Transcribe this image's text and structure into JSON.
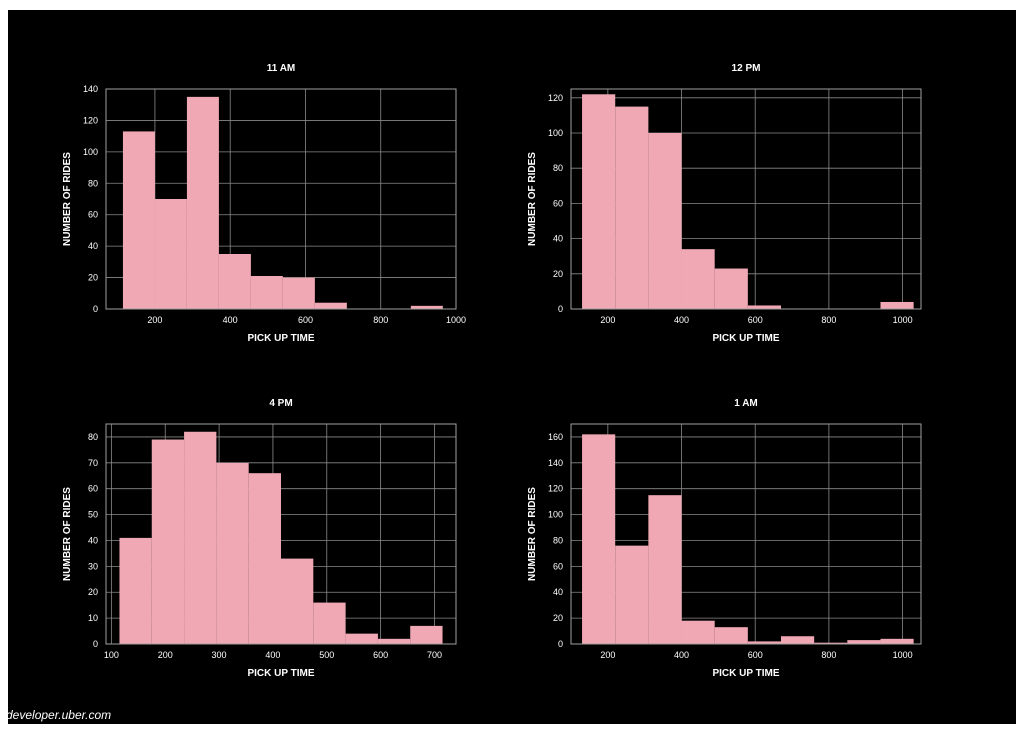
{
  "colors": {
    "background": "#000000",
    "bar": "#f0a8b4",
    "grid": "#8a8a8a",
    "text": "#ffffff"
  },
  "watermark": "developer.uber.com",
  "chart_data": [
    {
      "type": "bar",
      "title": "11 AM",
      "xlabel": "PICK UP TIME",
      "ylabel": "NUMBER OF RIDES",
      "xlim": [
        70,
        1000
      ],
      "ylim": [
        0,
        140
      ],
      "xticks": [
        200,
        400,
        600,
        800,
        1000
      ],
      "yticks": [
        0,
        20,
        40,
        60,
        80,
        100,
        120,
        140
      ],
      "grid": true,
      "bins": [
        {
          "x0": 115,
          "x1": 200,
          "count": 113
        },
        {
          "x0": 200,
          "x1": 285,
          "count": 70
        },
        {
          "x0": 285,
          "x1": 370,
          "count": 135
        },
        {
          "x0": 370,
          "x1": 455,
          "count": 35
        },
        {
          "x0": 455,
          "x1": 540,
          "count": 21
        },
        {
          "x0": 540,
          "x1": 625,
          "count": 20
        },
        {
          "x0": 625,
          "x1": 710,
          "count": 4
        },
        {
          "x0": 710,
          "x1": 795,
          "count": 0
        },
        {
          "x0": 795,
          "x1": 880,
          "count": 0
        },
        {
          "x0": 880,
          "x1": 965,
          "count": 2
        }
      ]
    },
    {
      "type": "bar",
      "title": "12 PM",
      "xlabel": "PICK UP TIME",
      "ylabel": "NUMBER OF RIDES",
      "xlim": [
        100,
        1050
      ],
      "ylim": [
        0,
        125
      ],
      "xticks": [
        200,
        400,
        600,
        800,
        1000
      ],
      "yticks": [
        0,
        20,
        40,
        60,
        80,
        100,
        120
      ],
      "grid": true,
      "bins": [
        {
          "x0": 130,
          "x1": 220,
          "count": 122
        },
        {
          "x0": 220,
          "x1": 310,
          "count": 115
        },
        {
          "x0": 310,
          "x1": 400,
          "count": 100
        },
        {
          "x0": 400,
          "x1": 490,
          "count": 34
        },
        {
          "x0": 490,
          "x1": 580,
          "count": 23
        },
        {
          "x0": 580,
          "x1": 670,
          "count": 2
        },
        {
          "x0": 670,
          "x1": 760,
          "count": 0
        },
        {
          "x0": 760,
          "x1": 850,
          "count": 0
        },
        {
          "x0": 850,
          "x1": 940,
          "count": 0
        },
        {
          "x0": 940,
          "x1": 1030,
          "count": 4
        }
      ]
    },
    {
      "type": "bar",
      "title": "4 PM",
      "xlabel": "PICK UP TIME",
      "ylabel": "NUMBER OF RIDES",
      "xlim": [
        90,
        740
      ],
      "ylim": [
        0,
        85
      ],
      "xticks": [
        100,
        200,
        300,
        400,
        500,
        600,
        700
      ],
      "yticks": [
        0,
        10,
        20,
        30,
        40,
        50,
        60,
        70,
        80
      ],
      "grid": true,
      "bins": [
        {
          "x0": 115,
          "x1": 175,
          "count": 41
        },
        {
          "x0": 175,
          "x1": 235,
          "count": 79
        },
        {
          "x0": 235,
          "x1": 295,
          "count": 82
        },
        {
          "x0": 295,
          "x1": 355,
          "count": 70
        },
        {
          "x0": 355,
          "x1": 415,
          "count": 66
        },
        {
          "x0": 415,
          "x1": 475,
          "count": 33
        },
        {
          "x0": 475,
          "x1": 535,
          "count": 16
        },
        {
          "x0": 535,
          "x1": 595,
          "count": 4
        },
        {
          "x0": 595,
          "x1": 655,
          "count": 2
        },
        {
          "x0": 655,
          "x1": 715,
          "count": 7
        }
      ]
    },
    {
      "type": "bar",
      "title": "1 AM",
      "xlabel": "PICK UP TIME",
      "ylabel": "NUMBER OF RIDES",
      "xlim": [
        100,
        1050
      ],
      "ylim": [
        0,
        170
      ],
      "xticks": [
        200,
        400,
        600,
        800,
        1000
      ],
      "yticks": [
        0,
        20,
        40,
        60,
        80,
        100,
        120,
        140,
        160
      ],
      "grid": true,
      "bins": [
        {
          "x0": 130,
          "x1": 220,
          "count": 162
        },
        {
          "x0": 220,
          "x1": 310,
          "count": 76
        },
        {
          "x0": 310,
          "x1": 400,
          "count": 115
        },
        {
          "x0": 400,
          "x1": 490,
          "count": 18
        },
        {
          "x0": 490,
          "x1": 580,
          "count": 13
        },
        {
          "x0": 580,
          "x1": 670,
          "count": 2
        },
        {
          "x0": 670,
          "x1": 760,
          "count": 6
        },
        {
          "x0": 760,
          "x1": 850,
          "count": 1
        },
        {
          "x0": 850,
          "x1": 940,
          "count": 3
        },
        {
          "x0": 940,
          "x1": 1030,
          "count": 4
        }
      ]
    }
  ]
}
